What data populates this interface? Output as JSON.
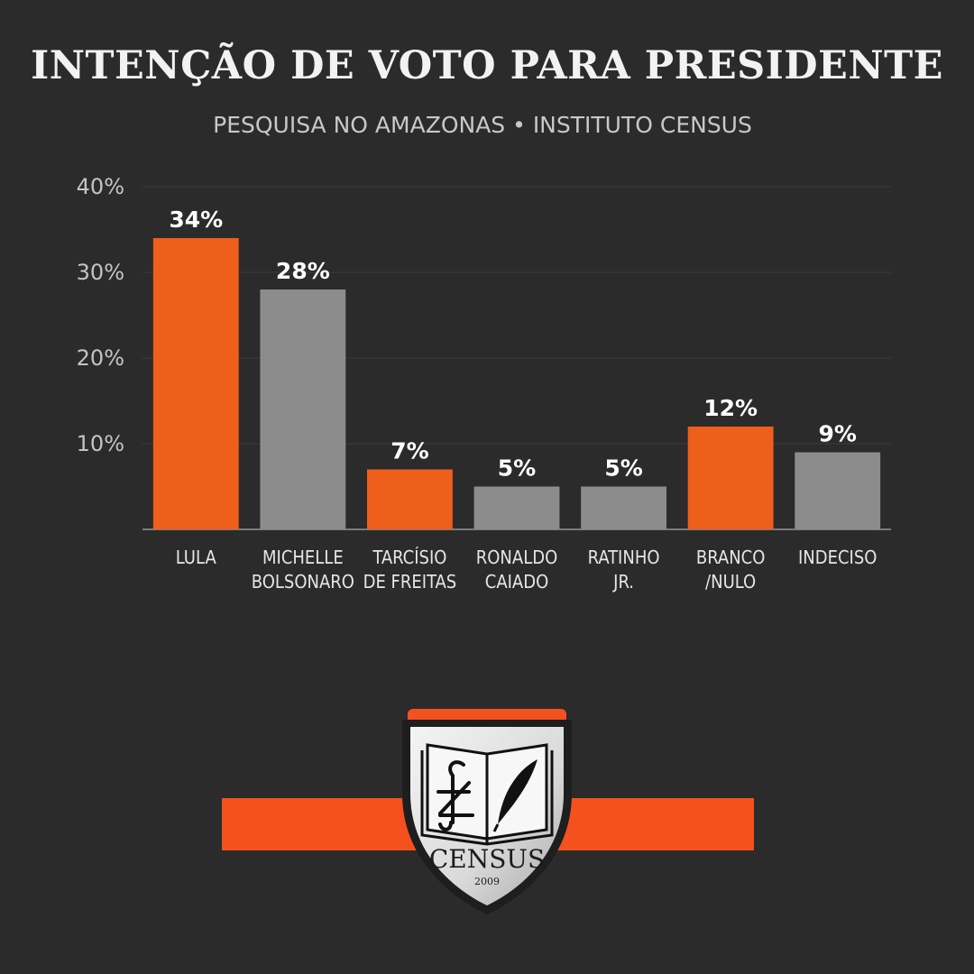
{
  "chart_data": {
    "type": "bar",
    "title": "INTENÇÃO DE VOTO PARA PRESIDENTE",
    "subtitle": "PESQUISA NO AMAZONAS • INSTITUTO CENSUS",
    "categories": [
      [
        "LULA"
      ],
      [
        "MICHELLE",
        "BOLSONARO"
      ],
      [
        "TARCÍSIO",
        "DE FREITAS"
      ],
      [
        "RONALDO",
        "CAIADO"
      ],
      [
        "RATINHO",
        "JR."
      ],
      [
        "BRANCO",
        "/NULO"
      ],
      [
        "INDECISO"
      ]
    ],
    "values": [
      34,
      28,
      7,
      5,
      5,
      12,
      9
    ],
    "value_labels": [
      "34%",
      "28%",
      "7%",
      "5%",
      "5%",
      "12%",
      "9%"
    ],
    "bar_colors": [
      "#ee5f1c",
      "#8c8c8c",
      "#ee5f1c",
      "#8c8c8c",
      "#8c8c8c",
      "#ee5f1c",
      "#8c8c8c"
    ],
    "yticks": [
      10,
      20,
      30,
      40
    ],
    "ytick_labels": [
      "10%",
      "20%",
      "30%",
      "40%"
    ],
    "ylim": [
      0,
      40
    ],
    "xlabel": "",
    "ylabel": "",
    "grid": true,
    "legend": "none"
  },
  "logo": {
    "name": "CENSUS",
    "year": "2009",
    "accent": "#f4511e",
    "icon": "open-book-with-quill-shield-icon"
  }
}
